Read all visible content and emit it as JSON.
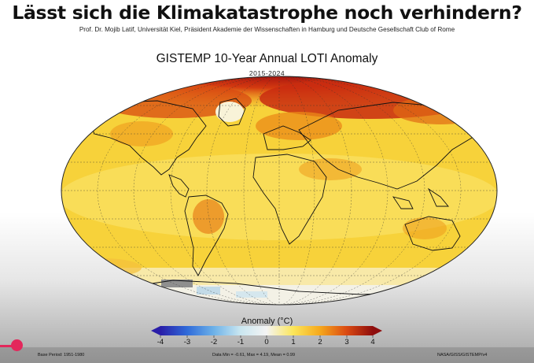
{
  "headline": "Lässt sich die Klimakatastrophe noch verhindern?",
  "subline": "Prof. Dr. Mojib Latif, Universität Kiel, Präsident Akademie der Wissenschaften in Hamburg und Deutsche Gesellschaft Club of Rome",
  "map": {
    "title": "GISTEMP 10-Year Annual LOTI Anomaly",
    "period": "2015-2024"
  },
  "legend": {
    "title": "Anomaly (°C)",
    "ticks": [
      "-4",
      "-3",
      "-2",
      "-1",
      "0",
      "1",
      "2",
      "3",
      "4"
    ],
    "colors": [
      "#2a1ea8",
      "#2f6ad9",
      "#6cb1e8",
      "#c9e6f0",
      "#f4f4f4",
      "#fbe65a",
      "#f6a91c",
      "#db4b12",
      "#8e0d0d"
    ]
  },
  "footer": {
    "base_period": "Base Period: 1951-1980",
    "stats": "Data Min = -0.61, Max = 4.19, Mean = 0.99",
    "source": "NASA/GISS/GISTEMP/v4"
  },
  "player": {
    "progress": 0.03
  }
}
